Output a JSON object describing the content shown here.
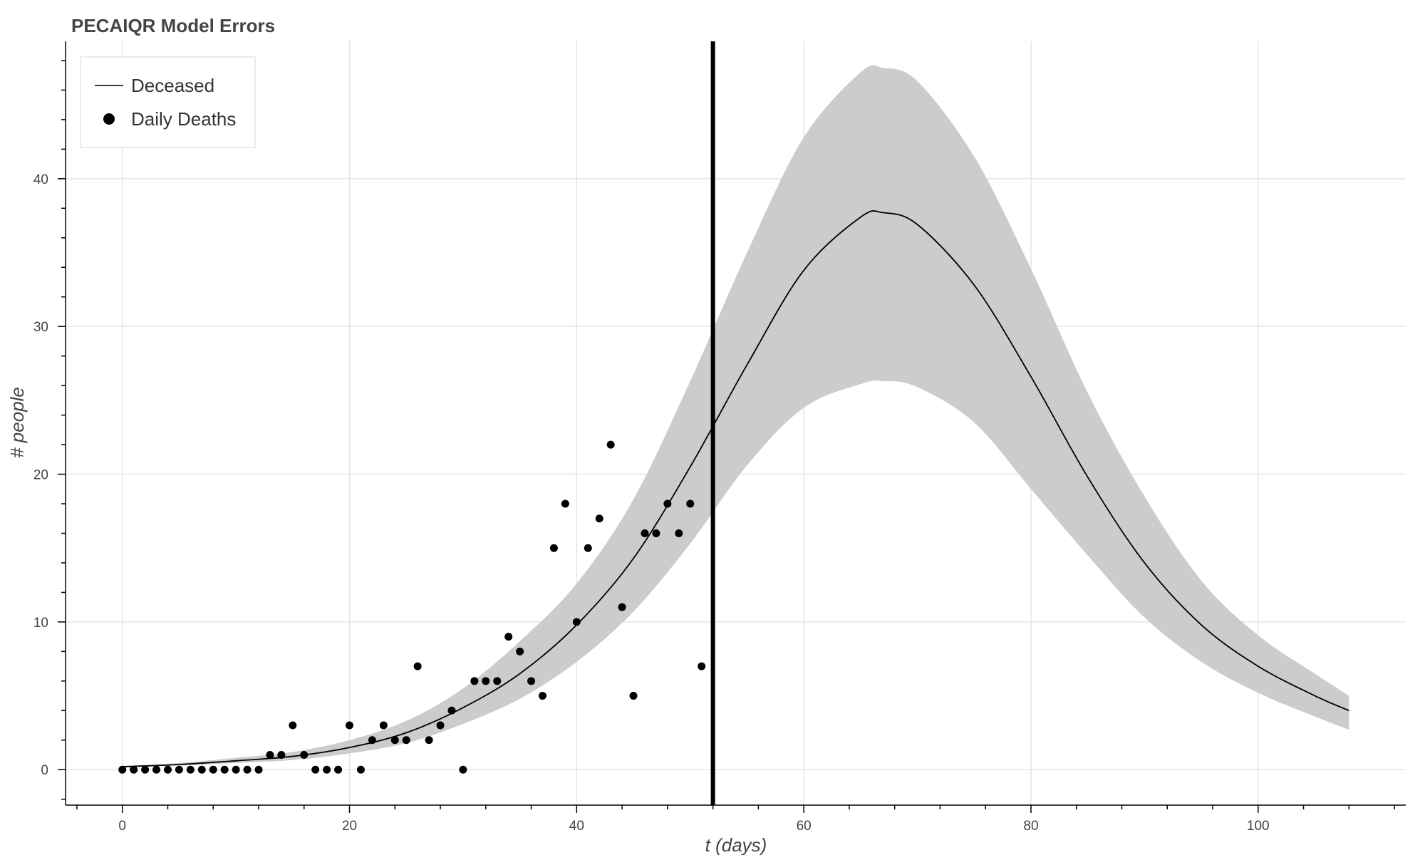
{
  "chart_data": {
    "type": "line",
    "title": "PECAIQR Model Errors",
    "xlabel": "t (days)",
    "ylabel": "# people",
    "xlim": [
      -5,
      113
    ],
    "ylim": [
      -2.4,
      49.3
    ],
    "x_ticks": [
      0,
      20,
      40,
      60,
      80,
      100
    ],
    "y_ticks": [
      0,
      10,
      20,
      30,
      40
    ],
    "grid": true,
    "legend_position": "top-left",
    "legend": [
      {
        "label": "Deceased",
        "marker": "line"
      },
      {
        "label": "Daily Deaths",
        "marker": "circle"
      }
    ],
    "vertical_line": {
      "x": 52,
      "color": "#000000"
    },
    "colors": {
      "line": "#000000",
      "band": "#cccccc",
      "points": "#000000",
      "grid": "#e5e5e5"
    },
    "series": [
      {
        "name": "Deceased",
        "type": "line",
        "x": [
          0,
          5,
          10,
          15,
          20,
          25,
          30,
          35,
          40,
          45,
          50,
          55,
          60,
          65,
          67,
          70,
          75,
          80,
          85,
          90,
          95,
          100,
          105,
          108
        ],
        "y": [
          0.2,
          0.35,
          0.6,
          0.9,
          1.5,
          2.5,
          4.2,
          6.5,
          9.8,
          14.3,
          20.5,
          27.4,
          33.8,
          37.4,
          37.7,
          36.9,
          32.8,
          26.6,
          19.8,
          14.0,
          9.8,
          7.0,
          5.0,
          4.0
        ]
      },
      {
        "name": "upper bound",
        "type": "band-upper",
        "x": [
          0,
          5,
          10,
          15,
          20,
          25,
          30,
          35,
          40,
          45,
          50,
          55,
          60,
          65,
          67,
          70,
          75,
          80,
          85,
          90,
          95,
          100,
          105,
          108
        ],
        "y": [
          0.25,
          0.45,
          0.8,
          1.2,
          2.0,
          3.3,
          5.5,
          8.7,
          12.6,
          18.3,
          26.3,
          35.0,
          42.8,
          47.2,
          47.5,
          46.6,
          41.5,
          33.9,
          25.5,
          18.5,
          12.8,
          9.1,
          6.5,
          5.0
        ]
      },
      {
        "name": "lower bound",
        "type": "band-lower",
        "x": [
          0,
          5,
          10,
          15,
          20,
          25,
          30,
          35,
          40,
          45,
          50,
          55,
          60,
          65,
          67,
          70,
          75,
          80,
          85,
          90,
          95,
          100,
          105,
          108
        ],
        "y": [
          0.15,
          0.28,
          0.45,
          0.65,
          1.1,
          1.8,
          3.1,
          4.8,
          7.3,
          10.7,
          15.3,
          20.6,
          24.5,
          26.1,
          26.3,
          25.9,
          23.5,
          19.0,
          14.5,
          10.3,
          7.3,
          5.2,
          3.6,
          2.7
        ]
      },
      {
        "name": "Daily Deaths",
        "type": "scatter",
        "x": [
          0,
          1,
          2,
          3,
          4,
          5,
          6,
          7,
          8,
          9,
          10,
          11,
          12,
          13,
          14,
          15,
          16,
          17,
          18,
          19,
          20,
          21,
          22,
          23,
          24,
          25,
          26,
          27,
          28,
          29,
          30,
          31,
          32,
          33,
          34,
          35,
          36,
          37,
          38,
          39,
          40,
          41,
          42,
          43,
          44,
          45,
          46,
          47,
          48,
          49,
          50,
          51
        ],
        "y": [
          0,
          0,
          0,
          0,
          0,
          0,
          0,
          0,
          0,
          0,
          0,
          0,
          0,
          1,
          1,
          3,
          1,
          0,
          0,
          0,
          3,
          0,
          2,
          3,
          2,
          2,
          7,
          2,
          3,
          4,
          0,
          6,
          6,
          6,
          9,
          8,
          6,
          5,
          15,
          18,
          10,
          15,
          17,
          22,
          11,
          5,
          16,
          16,
          18,
          16,
          18,
          7
        ]
      }
    ]
  }
}
